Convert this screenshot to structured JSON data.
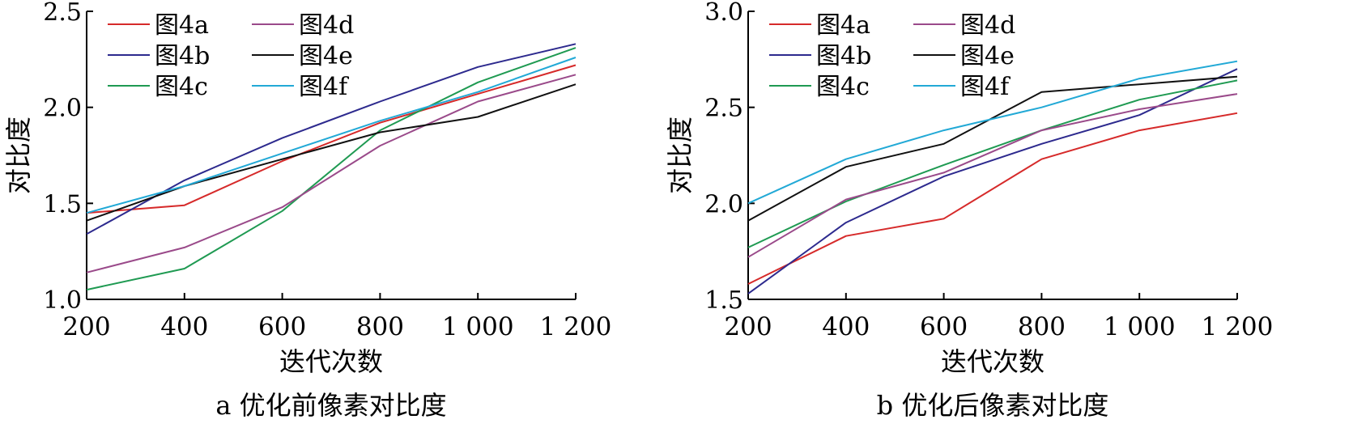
{
  "chart_data": [
    {
      "type": "line",
      "title": "a 优化前像素对比度",
      "xlabel": "迭代次数",
      "ylabel": "对比度",
      "x": [
        200,
        400,
        600,
        800,
        1000,
        1200
      ],
      "x_tick_labels": [
        "200",
        "400",
        "600",
        "800",
        "1 000",
        "1 200"
      ],
      "y_tick_labels": [
        "1.0",
        "1.5",
        "2.0",
        "2.5"
      ],
      "y_ticks": [
        1.0,
        1.5,
        2.0,
        2.5
      ],
      "xlim": [
        200,
        1200
      ],
      "ylim": [
        1.0,
        2.5
      ],
      "grid": false,
      "legend_position": "top-left",
      "series": [
        {
          "name": "图4a",
          "color": "#d62a2a",
          "values": [
            1.45,
            1.49,
            1.72,
            1.92,
            2.07,
            2.22
          ]
        },
        {
          "name": "图4b",
          "color": "#2d2a8e",
          "values": [
            1.34,
            1.62,
            1.84,
            2.03,
            2.21,
            2.33
          ]
        },
        {
          "name": "图4c",
          "color": "#1f9a52",
          "values": [
            1.05,
            1.16,
            1.46,
            1.88,
            2.13,
            2.31
          ]
        },
        {
          "name": "图4d",
          "color": "#9a4a8a",
          "values": [
            1.14,
            1.27,
            1.48,
            1.8,
            2.03,
            2.17
          ]
        },
        {
          "name": "图4e",
          "color": "#111111",
          "values": [
            1.41,
            1.59,
            1.73,
            1.87,
            1.95,
            2.12
          ]
        },
        {
          "name": "图4f",
          "color": "#22a9d6",
          "values": [
            1.45,
            1.59,
            1.76,
            1.93,
            2.08,
            2.26
          ]
        }
      ]
    },
    {
      "type": "line",
      "title": "b 优化后像素对比度",
      "xlabel": "迭代次数",
      "ylabel": "对比度",
      "x": [
        200,
        400,
        600,
        800,
        1000,
        1200
      ],
      "x_tick_labels": [
        "200",
        "400",
        "600",
        "800",
        "1 000",
        "1 200"
      ],
      "y_tick_labels": [
        "1.5",
        "2.0",
        "2.5",
        "3.0"
      ],
      "y_ticks": [
        1.5,
        2.0,
        2.5,
        3.0
      ],
      "xlim": [
        200,
        1200
      ],
      "ylim": [
        1.5,
        3.0
      ],
      "grid": false,
      "legend_position": "top-left",
      "series": [
        {
          "name": "图4a",
          "color": "#d62a2a",
          "values": [
            1.58,
            1.83,
            1.92,
            2.23,
            2.38,
            2.47
          ]
        },
        {
          "name": "图4b",
          "color": "#2d2a8e",
          "values": [
            1.53,
            1.9,
            2.14,
            2.31,
            2.46,
            2.7
          ]
        },
        {
          "name": "图4c",
          "color": "#1f9a52",
          "values": [
            1.77,
            2.01,
            2.2,
            2.38,
            2.54,
            2.64
          ]
        },
        {
          "name": "图4d",
          "color": "#9a4a8a",
          "values": [
            1.72,
            2.02,
            2.16,
            2.38,
            2.49,
            2.57
          ]
        },
        {
          "name": "图4e",
          "color": "#111111",
          "values": [
            1.91,
            2.19,
            2.31,
            2.58,
            2.62,
            2.66
          ]
        },
        {
          "name": "图4f",
          "color": "#22a9d6",
          "values": [
            2.0,
            2.23,
            2.38,
            2.5,
            2.65,
            2.74
          ]
        }
      ]
    }
  ]
}
